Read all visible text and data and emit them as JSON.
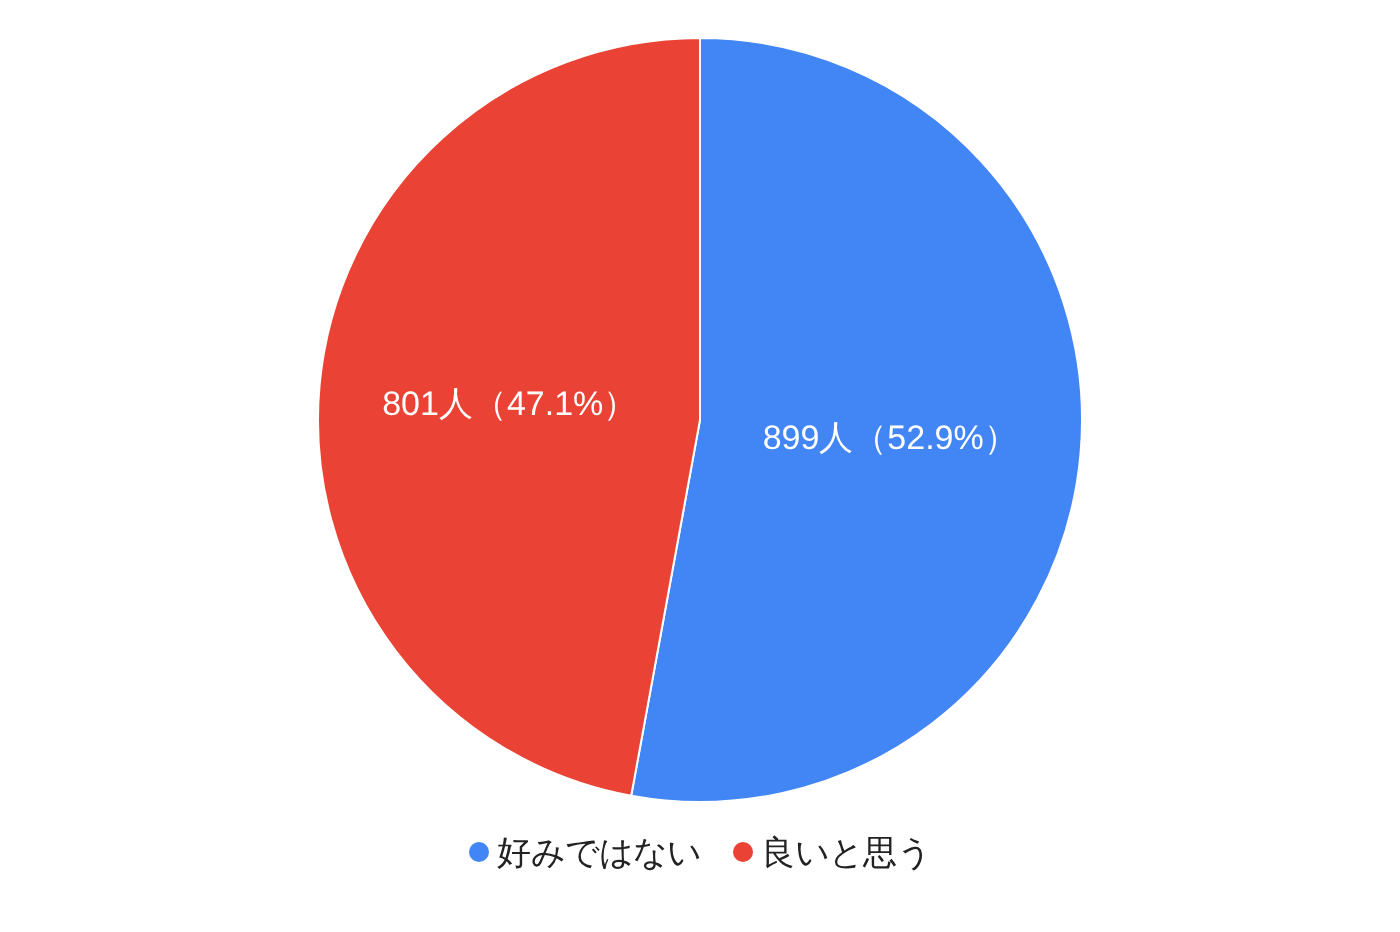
{
  "chart_data": {
    "type": "pie",
    "categories": [
      "好みではない",
      "良いと思う"
    ],
    "values": [
      899,
      801
    ],
    "colors": [
      "#4285f4",
      "#ea4335"
    ],
    "value_labels": [
      "899人（52.9%）",
      "801人（47.1%）"
    ],
    "legend": "bottom"
  }
}
